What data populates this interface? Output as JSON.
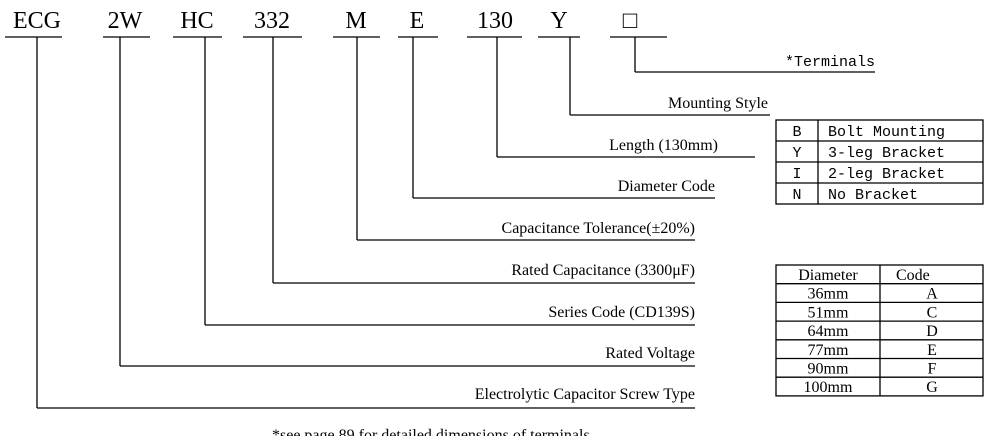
{
  "codes": [
    "ECG",
    "2W",
    "HC",
    "332",
    "M",
    "E",
    "130",
    "Y",
    "□"
  ],
  "explanations": [
    "*Terminals",
    "Mounting Style",
    "Length (130mm)",
    "Diameter Code",
    "Capacitance Tolerance(±20%)",
    "Rated Capacitance (3300μF)",
    "Series Code (CD139S)",
    "Rated Voltage",
    "Electrolytic Capacitor Screw Type"
  ],
  "mounting_table": {
    "rows": [
      [
        "B",
        "Bolt Mounting"
      ],
      [
        "Y",
        "3-leg Bracket"
      ],
      [
        "I",
        "2-leg Bracket"
      ],
      [
        "N",
        "No Bracket"
      ]
    ]
  },
  "diameter_table": {
    "header": [
      "Diameter",
      "Code"
    ],
    "rows": [
      [
        "36mm",
        "A"
      ],
      [
        "51mm",
        "C"
      ],
      [
        "64mm",
        "D"
      ],
      [
        "77mm",
        "E"
      ],
      [
        "90mm",
        "F"
      ],
      [
        "100mm",
        "G"
      ]
    ]
  },
  "footnote": "*see page 89 for detailed dimensions of terminals"
}
